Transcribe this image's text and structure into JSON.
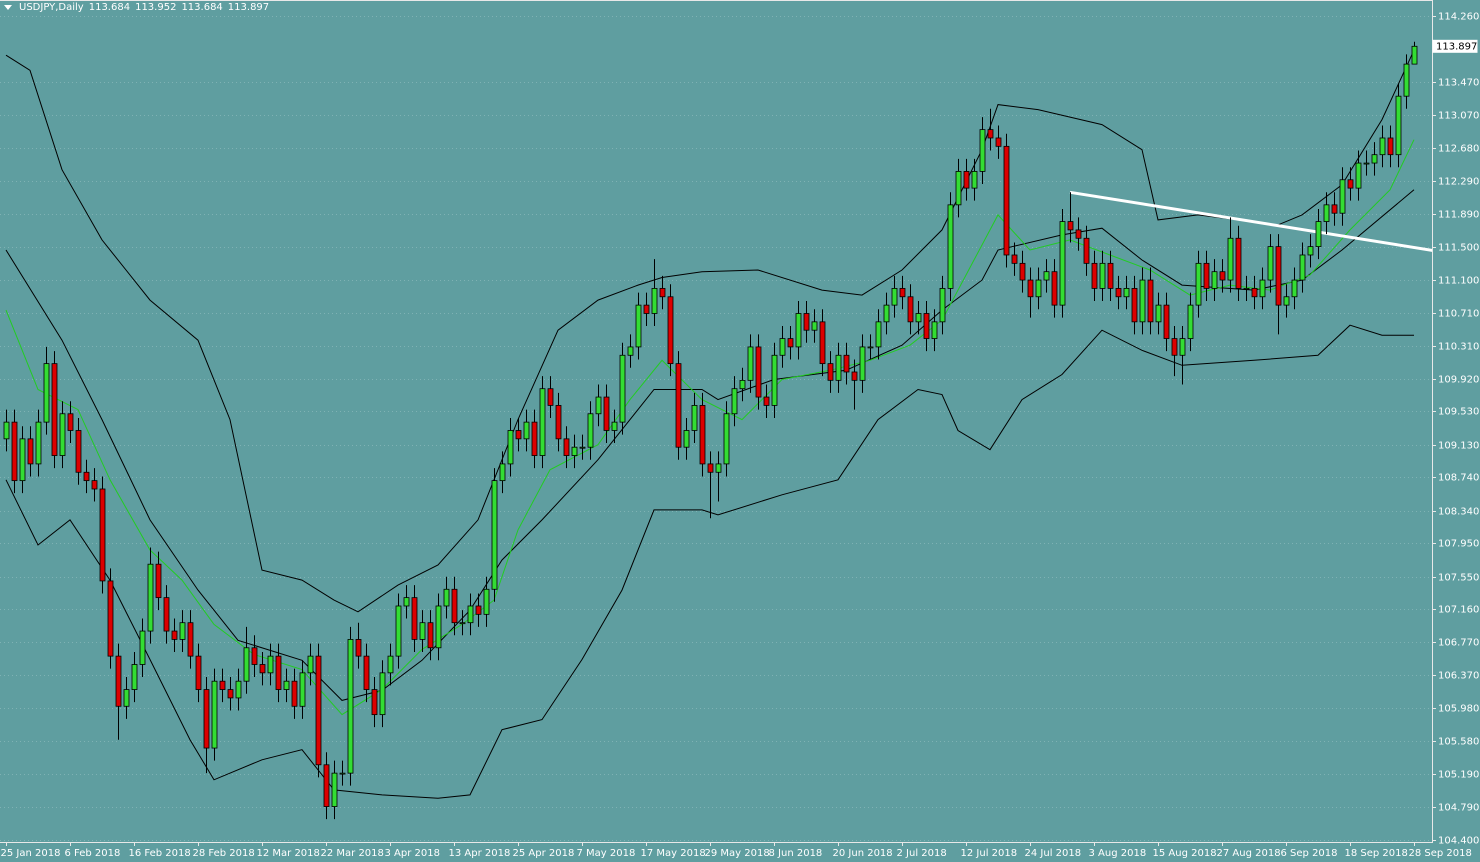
{
  "chart_data": {
    "type": "candlestick",
    "symbol_title": "USDJPY,Daily",
    "background": "#5f9ea0",
    "up_color": "#33dd33",
    "down_color": "#dd0000",
    "grid": true,
    "xlim": [
      -0.75,
      178.25
    ],
    "ylim": [
      104.376,
      114.451
    ],
    "yticks": [
      {
        "value": 114.26,
        "label": "114.260"
      },
      {
        "value": 113.47,
        "label": "113.470"
      },
      {
        "value": 113.07,
        "label": "113.070"
      },
      {
        "value": 112.68,
        "label": "112.680"
      },
      {
        "value": 112.29,
        "label": "112.290"
      },
      {
        "value": 111.89,
        "label": "111.890"
      },
      {
        "value": 111.5,
        "label": "111.500"
      },
      {
        "value": 111.1,
        "label": "111.100"
      },
      {
        "value": 110.71,
        "label": "110.710"
      },
      {
        "value": 110.31,
        "label": "110.310"
      },
      {
        "value": 109.92,
        "label": "109.920"
      },
      {
        "value": 109.53,
        "label": "109.530"
      },
      {
        "value": 109.13,
        "label": "109.130"
      },
      {
        "value": 108.74,
        "label": "108.740"
      },
      {
        "value": 108.34,
        "label": "108.340"
      },
      {
        "value": 107.95,
        "label": "107.950"
      },
      {
        "value": 107.55,
        "label": "107.550"
      },
      {
        "value": 107.16,
        "label": "107.160"
      },
      {
        "value": 106.77,
        "label": "106.770"
      },
      {
        "value": 106.37,
        "label": "106.370"
      },
      {
        "value": 105.98,
        "label": "105.980"
      },
      {
        "value": 105.58,
        "label": "105.580"
      },
      {
        "value": 105.19,
        "label": "105.190"
      },
      {
        "value": 104.79,
        "label": "104.790"
      },
      {
        "value": 104.4,
        "label": "104.400"
      }
    ],
    "categories": [
      "25 Jan 2018",
      null,
      null,
      null,
      null,
      null,
      null,
      null,
      "6 Feb 2018",
      null,
      null,
      null,
      null,
      null,
      null,
      null,
      "16 Feb 2018",
      null,
      null,
      null,
      null,
      null,
      null,
      null,
      "28 Feb 2018",
      null,
      null,
      null,
      null,
      null,
      null,
      null,
      "12 Mar 2018",
      null,
      null,
      null,
      null,
      null,
      null,
      null,
      "22 Mar 2018",
      null,
      null,
      null,
      null,
      null,
      null,
      null,
      "3 Apr 2018",
      null,
      null,
      null,
      null,
      null,
      null,
      null,
      "13 Apr 2018",
      null,
      null,
      null,
      null,
      null,
      null,
      null,
      "25 Apr 2018",
      null,
      null,
      null,
      null,
      null,
      null,
      null,
      "7 May 2018",
      null,
      null,
      null,
      null,
      null,
      null,
      null,
      "17 May 2018",
      null,
      null,
      null,
      null,
      null,
      null,
      null,
      "29 May 2018",
      null,
      null,
      null,
      null,
      null,
      null,
      null,
      "8 Jun 2018",
      null,
      null,
      null,
      null,
      null,
      null,
      null,
      "20 Jun 2018",
      null,
      null,
      null,
      null,
      null,
      null,
      null,
      "2 Jul 2018",
      null,
      null,
      null,
      null,
      null,
      null,
      null,
      "12 Jul 2018",
      null,
      null,
      null,
      null,
      null,
      null,
      null,
      "24 Jul 2018",
      null,
      null,
      null,
      null,
      null,
      null,
      null,
      "3 Aug 2018",
      null,
      null,
      null,
      null,
      null,
      null,
      null,
      "15 Aug 2018",
      null,
      null,
      null,
      null,
      null,
      null,
      null,
      "27 Aug 2018",
      null,
      null,
      null,
      null,
      null,
      null,
      null,
      "6 Sep 2018",
      null,
      null,
      null,
      null,
      null,
      null,
      null,
      "18 Sep 2018",
      null,
      null,
      null,
      null,
      null,
      null,
      null,
      "28 Sep 2018"
    ],
    "open": [
      109.2,
      109.4,
      108.7,
      109.2,
      108.9,
      109.4,
      110.1,
      109.0,
      109.5,
      109.3,
      108.8,
      108.7,
      108.6,
      107.5,
      106.6,
      106.0,
      106.2,
      106.5,
      106.9,
      107.7,
      107.3,
      106.9,
      106.8,
      107.0,
      106.6,
      106.2,
      105.5,
      106.3,
      106.2,
      106.1,
      106.3,
      106.7,
      106.5,
      106.4,
      106.6,
      106.2,
      106.3,
      106.0,
      106.4,
      106.6,
      105.3,
      104.8,
      105.2,
      105.2,
      106.8,
      106.6,
      106.2,
      105.9,
      106.4,
      106.6,
      107.2,
      107.3,
      106.8,
      107.0,
      106.7,
      107.2,
      107.4,
      107.0,
      107.0,
      107.2,
      107.1,
      107.4,
      108.7,
      108.9,
      109.3,
      109.2,
      109.4,
      109.0,
      109.8,
      109.6,
      109.2,
      109.0,
      109.1,
      109.1,
      109.5,
      109.7,
      109.3,
      109.4,
      110.2,
      110.3,
      110.8,
      110.7,
      111.0,
      110.9,
      110.1,
      109.1,
      109.3,
      109.6,
      108.9,
      108.8,
      108.9,
      109.5,
      109.8,
      109.9,
      110.3,
      109.7,
      109.6,
      110.2,
      110.4,
      110.3,
      110.7,
      110.5,
      110.6,
      110.1,
      109.9,
      110.2,
      110.0,
      109.9,
      110.3,
      110.3,
      110.6,
      110.8,
      111.0,
      110.9,
      110.6,
      110.7,
      110.4,
      110.6,
      111.0,
      112.0,
      112.4,
      112.2,
      112.4,
      112.9,
      112.8,
      112.7,
      111.4,
      111.3,
      111.1,
      110.9,
      111.1,
      111.2,
      110.8,
      111.8,
      111.7,
      111.6,
      111.3,
      111.0,
      111.3,
      111.0,
      110.9,
      111.0,
      110.6,
      111.1,
      110.6,
      110.8,
      110.4,
      110.2,
      110.4,
      110.8,
      111.3,
      111.0,
      111.2,
      111.1,
      111.6,
      111.0,
      111.0,
      110.9,
      111.1,
      111.5,
      110.8,
      110.9,
      111.1,
      111.4,
      111.5,
      111.8,
      112.0,
      111.9,
      112.3,
      112.2,
      112.5,
      112.5,
      112.6,
      112.8,
      112.6,
      113.3,
      113.684
    ],
    "high": [
      109.55,
      109.55,
      109.35,
      109.35,
      109.55,
      110.3,
      110.25,
      109.65,
      109.65,
      109.45,
      108.95,
      108.85,
      108.75,
      107.65,
      106.75,
      106.35,
      106.65,
      107.05,
      107.9,
      107.85,
      107.45,
      107.05,
      107.15,
      107.15,
      106.75,
      106.35,
      106.45,
      106.45,
      106.35,
      106.45,
      106.95,
      106.85,
      106.65,
      106.75,
      106.75,
      106.45,
      106.45,
      106.55,
      106.75,
      106.75,
      105.45,
      105.35,
      105.35,
      106.95,
      107.0,
      106.75,
      106.35,
      106.55,
      106.75,
      107.35,
      107.45,
      107.45,
      107.15,
      107.15,
      107.35,
      107.55,
      107.55,
      107.15,
      107.35,
      107.35,
      107.55,
      108.85,
      109.05,
      109.45,
      109.45,
      109.55,
      109.55,
      109.95,
      109.95,
      109.75,
      109.35,
      109.25,
      109.25,
      109.65,
      109.85,
      109.85,
      109.55,
      110.35,
      110.45,
      110.95,
      110.95,
      111.35,
      111.15,
      111.05,
      110.25,
      109.45,
      109.75,
      109.75,
      109.05,
      109.05,
      109.65,
      109.95,
      110.05,
      110.45,
      110.45,
      109.85,
      110.35,
      110.55,
      110.55,
      110.85,
      110.85,
      110.75,
      110.75,
      110.25,
      110.35,
      110.35,
      110.15,
      110.45,
      110.45,
      110.75,
      110.95,
      111.15,
      111.15,
      111.05,
      110.85,
      110.85,
      110.75,
      111.15,
      112.15,
      112.55,
      112.55,
      112.55,
      113.05,
      113.15,
      112.95,
      112.85,
      111.55,
      111.45,
      111.25,
      111.25,
      111.35,
      111.35,
      111.95,
      112.15,
      111.85,
      111.75,
      111.45,
      111.45,
      111.45,
      111.15,
      111.15,
      111.15,
      111.25,
      111.25,
      110.95,
      110.95,
      110.55,
      110.55,
      110.95,
      111.45,
      111.45,
      111.35,
      111.35,
      111.85,
      111.75,
      111.15,
      111.15,
      111.25,
      111.65,
      111.65,
      111.05,
      111.25,
      111.55,
      111.65,
      111.95,
      112.15,
      112.15,
      112.45,
      112.45,
      112.65,
      112.65,
      112.75,
      112.95,
      112.95,
      113.45,
      113.8,
      113.952
    ],
    "low": [
      109.05,
      108.55,
      108.55,
      108.75,
      108.75,
      109.25,
      108.85,
      108.85,
      109.15,
      108.65,
      108.55,
      108.45,
      107.35,
      106.45,
      105.6,
      105.85,
      106.05,
      106.35,
      106.75,
      107.15,
      106.75,
      106.65,
      106.65,
      106.45,
      106.05,
      105.2,
      105.35,
      106.05,
      105.95,
      105.95,
      106.15,
      106.35,
      106.25,
      106.25,
      106.05,
      106.05,
      105.85,
      105.85,
      106.25,
      105.15,
      104.65,
      104.65,
      105.05,
      105.05,
      106.45,
      106.05,
      105.75,
      105.75,
      106.25,
      106.45,
      107.05,
      106.65,
      106.65,
      106.55,
      106.55,
      107.05,
      106.85,
      106.85,
      106.85,
      106.95,
      106.95,
      107.25,
      108.55,
      108.75,
      109.05,
      109.05,
      108.85,
      108.85,
      109.45,
      109.05,
      108.85,
      108.85,
      108.95,
      108.95,
      109.35,
      109.15,
      109.15,
      109.25,
      110.05,
      110.15,
      110.55,
      110.55,
      110.75,
      109.95,
      108.95,
      108.95,
      109.15,
      108.75,
      108.25,
      108.45,
      108.75,
      109.35,
      109.65,
      109.75,
      109.55,
      109.45,
      109.45,
      110.05,
      110.15,
      110.15,
      110.35,
      110.35,
      109.95,
      109.75,
      109.75,
      109.85,
      109.55,
      109.75,
      110.15,
      110.15,
      110.45,
      110.65,
      110.75,
      110.45,
      110.45,
      110.25,
      110.25,
      110.45,
      110.85,
      111.85,
      112.05,
      112.05,
      112.25,
      112.65,
      112.55,
      111.25,
      111.15,
      110.95,
      110.65,
      110.75,
      110.95,
      110.65,
      110.65,
      111.55,
      111.45,
      111.15,
      110.85,
      110.85,
      110.85,
      110.75,
      110.75,
      110.45,
      110.45,
      110.45,
      110.45,
      110.25,
      109.95,
      109.85,
      110.25,
      110.65,
      110.85,
      110.85,
      110.95,
      110.95,
      110.85,
      110.85,
      110.75,
      110.75,
      110.95,
      110.45,
      110.65,
      110.75,
      110.95,
      111.25,
      111.35,
      111.65,
      111.75,
      111.75,
      112.05,
      112.05,
      112.35,
      112.35,
      112.45,
      112.45,
      112.45,
      113.15,
      113.684
    ],
    "close": [
      109.4,
      108.7,
      109.2,
      108.9,
      109.4,
      110.1,
      109.0,
      109.5,
      109.3,
      108.8,
      108.7,
      108.6,
      107.5,
      106.6,
      106.0,
      106.2,
      106.5,
      106.9,
      107.7,
      107.3,
      106.9,
      106.8,
      107.0,
      106.6,
      106.2,
      105.5,
      106.3,
      106.2,
      106.1,
      106.3,
      106.7,
      106.5,
      106.4,
      106.6,
      106.2,
      106.3,
      106.0,
      106.4,
      106.6,
      105.3,
      104.8,
      105.2,
      105.2,
      106.8,
      106.6,
      106.2,
      105.9,
      106.4,
      106.6,
      107.2,
      107.3,
      106.8,
      107.0,
      106.7,
      107.2,
      107.4,
      107.0,
      107.0,
      107.2,
      107.1,
      107.4,
      108.7,
      108.9,
      109.3,
      109.2,
      109.4,
      109.0,
      109.8,
      109.6,
      109.2,
      109.0,
      109.1,
      109.1,
      109.5,
      109.7,
      109.3,
      109.4,
      110.2,
      110.3,
      110.8,
      110.7,
      111.0,
      110.9,
      110.1,
      109.1,
      109.3,
      109.6,
      108.9,
      108.8,
      108.9,
      109.5,
      109.8,
      109.9,
      110.3,
      109.7,
      109.6,
      110.2,
      110.4,
      110.3,
      110.7,
      110.5,
      110.6,
      110.1,
      109.9,
      110.2,
      110.0,
      109.9,
      110.3,
      110.3,
      110.6,
      110.8,
      111.0,
      110.9,
      110.6,
      110.7,
      110.4,
      110.6,
      111.0,
      112.0,
      112.4,
      112.2,
      112.4,
      112.9,
      112.8,
      112.7,
      111.4,
      111.3,
      111.1,
      110.9,
      111.1,
      111.2,
      110.8,
      111.8,
      111.7,
      111.6,
      111.3,
      111.0,
      111.3,
      111.0,
      110.9,
      111.0,
      110.6,
      111.1,
      110.6,
      110.8,
      110.4,
      110.2,
      110.4,
      110.8,
      111.3,
      111.0,
      111.2,
      111.1,
      111.6,
      111.0,
      111.0,
      110.9,
      111.1,
      111.5,
      110.8,
      110.9,
      111.1,
      111.4,
      111.5,
      111.8,
      112.0,
      111.9,
      112.3,
      112.2,
      112.5,
      112.5,
      112.6,
      112.8,
      112.6,
      113.3,
      113.684,
      113.897
    ],
    "lines": [
      {
        "color": "#000000",
        "x": [
          0,
          3,
          7,
          12,
          18,
          24,
          28,
          32,
          37,
          41,
          44,
          49,
          54,
          59,
          64,
          69,
          74,
          79,
          82,
          87,
          94,
          102,
          107,
          112,
          117,
          122,
          124,
          129,
          137,
          142,
          144,
          149,
          154,
          159,
          162,
          167,
          172,
          176
        ],
        "values": [
          113.79,
          113.61,
          112.42,
          111.58,
          110.86,
          110.38,
          109.43,
          107.63,
          107.51,
          107.27,
          107.13,
          107.45,
          107.69,
          108.23,
          109.43,
          110.5,
          110.86,
          111.04,
          111.13,
          111.2,
          111.22,
          110.98,
          110.92,
          111.22,
          111.7,
          112.66,
          113.2,
          113.14,
          112.96,
          112.66,
          111.82,
          111.88,
          111.82,
          111.76,
          111.88,
          112.24,
          113.02,
          113.85
        ]
      },
      {
        "color": "#000000",
        "x": [
          0,
          7,
          12,
          18,
          24,
          29,
          37,
          42,
          47,
          52,
          58,
          62,
          67,
          74,
          81,
          87,
          89,
          96,
          105,
          112,
          117,
          122,
          124,
          132,
          137,
          142,
          147,
          156,
          162,
          167,
          176
        ],
        "values": [
          111.46,
          110.38,
          109.43,
          108.23,
          107.39,
          106.79,
          106.55,
          106.07,
          106.19,
          106.55,
          107.15,
          107.75,
          108.23,
          108.95,
          109.79,
          109.79,
          109.67,
          109.91,
          110.02,
          110.32,
          110.74,
          111.1,
          111.46,
          111.64,
          111.72,
          111.34,
          111.04,
          110.98,
          111.1,
          111.46,
          112.18
        ]
      },
      {
        "color": "#000000",
        "x": [
          0,
          4,
          8,
          13,
          18,
          23,
          26,
          32,
          37,
          41,
          47,
          54,
          58,
          62,
          67,
          72,
          77,
          81,
          87,
          89,
          97,
          104,
          109,
          114,
          117,
          119,
          123,
          127,
          132,
          137,
          142,
          147,
          156,
          164,
          168,
          172,
          176
        ],
        "values": [
          108.71,
          107.93,
          108.23,
          107.51,
          106.56,
          105.6,
          105.12,
          105.36,
          105.48,
          105.0,
          104.94,
          104.9,
          104.94,
          105.72,
          105.84,
          106.56,
          107.39,
          108.35,
          108.35,
          108.29,
          108.53,
          108.71,
          109.43,
          109.79,
          109.73,
          109.3,
          109.07,
          109.67,
          109.97,
          110.5,
          110.26,
          110.08,
          110.14,
          110.2,
          110.56,
          110.44,
          110.44
        ]
      },
      {
        "color": "#22cc22",
        "x": [
          0,
          4,
          9,
          13,
          18,
          22,
          26,
          31,
          37,
          42,
          47,
          52,
          57,
          61,
          64,
          68,
          74,
          78,
          82,
          87,
          92,
          97,
          103,
          108,
          113,
          117,
          121,
          124,
          128,
          133,
          138,
          143,
          148,
          153,
          158,
          163,
          168,
          173,
          176
        ],
        "values": [
          110.74,
          109.79,
          109.55,
          108.71,
          107.87,
          107.51,
          106.98,
          106.62,
          106.44,
          105.9,
          106.2,
          106.68,
          106.98,
          107.27,
          108.11,
          108.83,
          109.13,
          109.67,
          110.14,
          109.67,
          109.43,
          109.91,
          110.02,
          110.14,
          110.32,
          110.62,
          111.34,
          111.88,
          111.46,
          111.58,
          111.4,
          111.22,
          110.92,
          111.04,
          110.98,
          111.16,
          111.7,
          112.18,
          112.78
        ]
      },
      {
        "color": "#ffffff",
        "width": 3,
        "x": [
          133,
          178.6
        ],
        "values": [
          112.15,
          111.45
        ]
      }
    ]
  }
}
